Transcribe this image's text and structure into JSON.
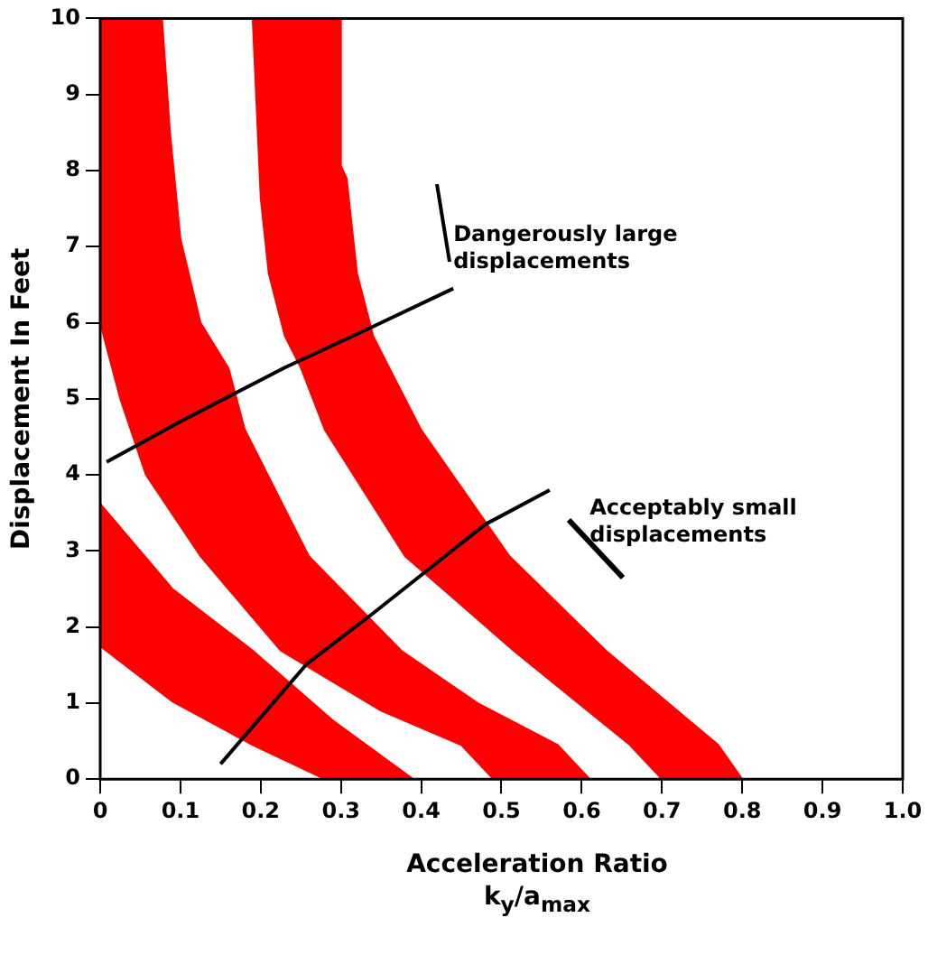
{
  "chart_data": {
    "type": "area",
    "xlabel": "Acceleration Ratio\nk$_{y}$/a$_{max}$",
    "ylabel": "Displacement In Feet",
    "xlim": [
      0,
      1
    ],
    "ylim": [
      0,
      10
    ],
    "xticks": [
      0,
      0.1,
      0.2,
      0.3,
      0.4,
      0.5,
      0.6,
      0.7,
      0.8,
      0.9,
      {
        "value": 1,
        "label": "1.0"
      }
    ],
    "yticks": [
      0,
      1,
      2,
      3,
      4,
      5,
      6,
      7,
      8,
      9,
      10
    ],
    "grid": false,
    "legend": false,
    "series": [
      {
        "type": "area",
        "color": "#ff0000",
        "x": [
          0,
          0,
          0.09,
          0.19,
          0.28,
          0.39,
          0.29,
          0.19,
          0.09,
          0
        ],
        "values": [
          3.62,
          1.75,
          1.02,
          0.45,
          0,
          0,
          0.77,
          1.69,
          2.5,
          3.62
        ]
      },
      {
        "type": "area",
        "color": "#ff0000",
        "x": [
          0,
          0,
          0.005,
          0.025,
          0.057,
          0.125,
          0.225,
          0.35,
          0.45,
          0.49,
          0.61,
          0.57,
          0.47,
          0.375,
          0.26,
          0.18,
          0.16,
          0.125,
          0.1,
          0.087,
          0.077,
          0
        ],
        "values": [
          10,
          6,
          5.8,
          5,
          4,
          2.93,
          1.69,
          0.9,
          0.45,
          0,
          0,
          0.45,
          1,
          1.69,
          2.93,
          4.6,
          5.4,
          6,
          7.1,
          8.5,
          10,
          10
        ]
      },
      {
        "type": "area",
        "color": "#ff0000",
        "x": [
          0.19,
          0.2,
          0.21,
          0.23,
          0.25,
          0.28,
          0.38,
          0.515,
          0.66,
          0.7,
          0.8,
          0.77,
          0.63,
          0.51,
          0.4,
          0.36,
          0.34,
          0.32,
          0.307,
          0.3,
          0.3,
          0.19
        ],
        "values": [
          10,
          7.64,
          6.65,
          5.83,
          5.41,
          4.59,
          2.93,
          1.69,
          0.45,
          0,
          0,
          0.45,
          1.69,
          2.93,
          4.59,
          5.41,
          5.83,
          6.65,
          7.9,
          8.06,
          10,
          10
        ]
      },
      {
        "type": "line",
        "color": "#000000",
        "line_style": "solid",
        "x": [
          0.008,
          0.1,
          0.23,
          0.33,
          0.44
        ],
        "values": [
          4.17,
          4.7,
          5.41,
          5.9,
          6.45
        ]
      },
      {
        "type": "line",
        "color": "#000000",
        "line_style": "solid",
        "x": [
          0.15,
          0.257,
          0.34,
          0.48,
          0.56
        ],
        "values": [
          0.2,
          1.51,
          2.18,
          3.35,
          3.8
        ]
      }
    ],
    "annotations": [
      "Dangerously large\ndisplacements",
      "Acceptably small\ndisplacements"
    ]
  }
}
